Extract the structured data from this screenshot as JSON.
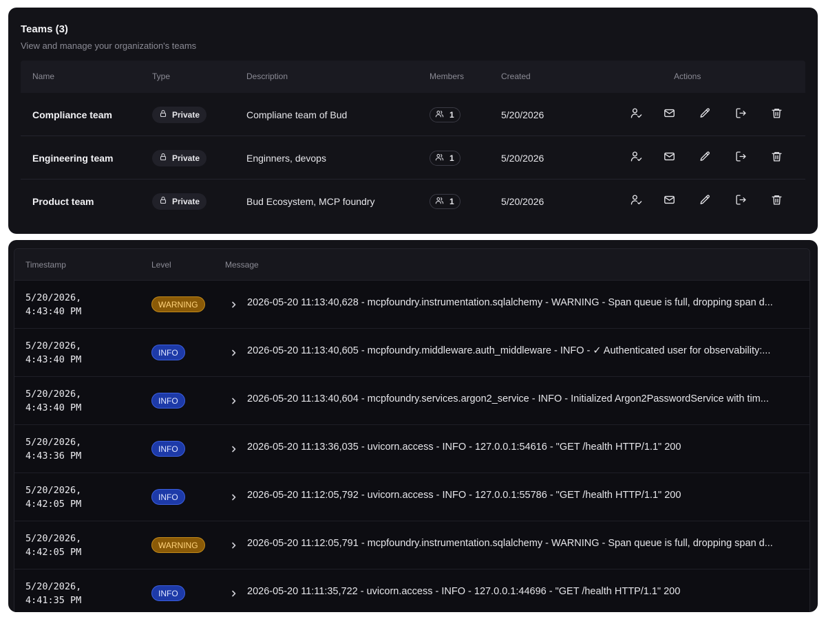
{
  "teams": {
    "title": "Teams (3)",
    "subtitle": "View and manage your organization's teams",
    "columns": [
      "Name",
      "Type",
      "Description",
      "Members",
      "Created",
      "Actions"
    ],
    "rows": [
      {
        "name": "Compliance team",
        "type": "Private",
        "description": "Compliane team of Bud",
        "members": "1",
        "created": "5/20/2026"
      },
      {
        "name": "Engineering team",
        "type": "Private",
        "description": "Enginners, devops",
        "members": "1",
        "created": "5/20/2026"
      },
      {
        "name": "Product team",
        "type": "Private",
        "description": "Bud Ecosystem, MCP foundry",
        "members": "1",
        "created": "5/20/2026"
      }
    ],
    "actions": [
      {
        "name": "manage-members",
        "icon": "user-check-icon"
      },
      {
        "name": "invite",
        "icon": "mail-icon"
      },
      {
        "name": "edit",
        "icon": "pencil-icon"
      },
      {
        "name": "leave",
        "icon": "logout-icon"
      },
      {
        "name": "delete",
        "icon": "trash-icon"
      }
    ]
  },
  "logs": {
    "columns": [
      "Timestamp",
      "Level",
      "Message"
    ],
    "rows": [
      {
        "timestamp": "5/20/2026,\n4:43:40 PM",
        "level": "WARNING",
        "message": "2026-05-20 11:13:40,628 - mcpfoundry.instrumentation.sqlalchemy - WARNING - Span queue is full, dropping span d..."
      },
      {
        "timestamp": "5/20/2026,\n4:43:40 PM",
        "level": "INFO",
        "message": "2026-05-20 11:13:40,605 - mcpfoundry.middleware.auth_middleware - INFO - ✓ Authenticated user for observability:..."
      },
      {
        "timestamp": "5/20/2026,\n4:43:40 PM",
        "level": "INFO",
        "message": "2026-05-20 11:13:40,604 - mcpfoundry.services.argon2_service - INFO - Initialized Argon2PasswordService with tim..."
      },
      {
        "timestamp": "5/20/2026,\n4:43:36 PM",
        "level": "INFO",
        "message": "2026-05-20 11:13:36,035 - uvicorn.access - INFO - 127.0.0.1:54616 - \"GET /health HTTP/1.1\" 200"
      },
      {
        "timestamp": "5/20/2026,\n4:42:05 PM",
        "level": "INFO",
        "message": "2026-05-20 11:12:05,792 - uvicorn.access - INFO - 127.0.0.1:55786 - \"GET /health HTTP/1.1\" 200"
      },
      {
        "timestamp": "5/20/2026,\n4:42:05 PM",
        "level": "WARNING",
        "message": "2026-05-20 11:12:05,791 - mcpfoundry.instrumentation.sqlalchemy - WARNING - Span queue is full, dropping span d..."
      },
      {
        "timestamp": "5/20/2026,\n4:41:35 PM",
        "level": "INFO",
        "message": "2026-05-20 11:11:35,722 - uvicorn.access - INFO - 127.0.0.1:44696 - \"GET /health HTTP/1.1\" 200"
      }
    ]
  },
  "colors": {
    "warning": "#8a5a07",
    "info": "#1d3aa8",
    "panel": "#131318"
  }
}
